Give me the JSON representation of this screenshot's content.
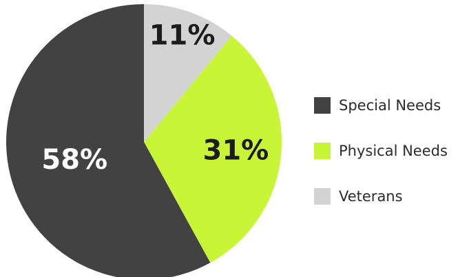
{
  "chart_data": {
    "type": "pie",
    "title": "",
    "legend_position": "right",
    "slices": [
      {
        "name": "Veterans",
        "value": 11,
        "label": "11%",
        "color": "#d3d3d3",
        "label_color": "#1c1c1c"
      },
      {
        "name": "Physical Needs",
        "value": 31,
        "label": "31%",
        "color": "#c8f536",
        "label_color": "#1c1c1c"
      },
      {
        "name": "Special Needs",
        "value": 58,
        "label": "58%",
        "color": "#424242",
        "label_color": "#ffffff"
      }
    ],
    "legend": [
      {
        "name": "Special Needs",
        "color": "#424242"
      },
      {
        "name": "Physical Needs",
        "color": "#c8f536"
      },
      {
        "name": "Veterans",
        "color": "#d3d3d3"
      }
    ]
  }
}
